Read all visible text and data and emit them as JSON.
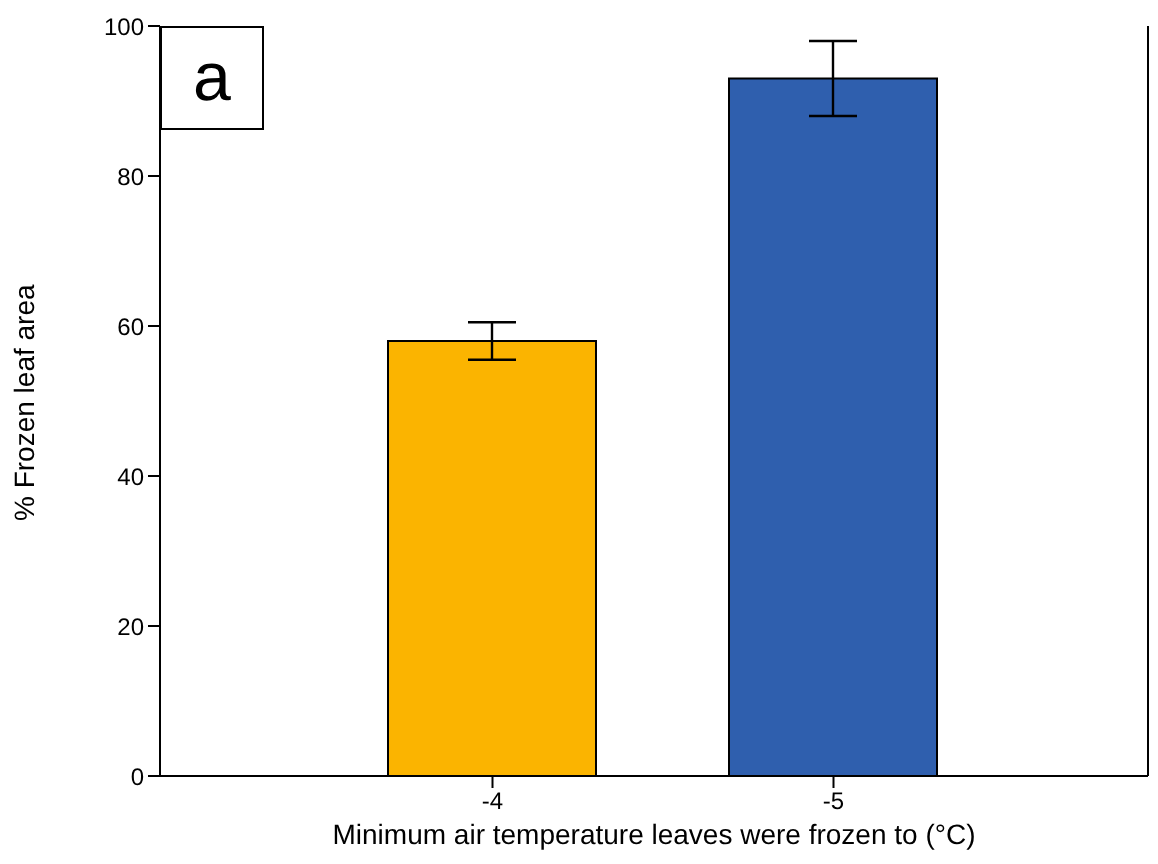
{
  "chart_data": {
    "type": "bar",
    "xlabel": "Minimum air temperature leaves were frozen to (°C)",
    "ylabel": "% Frozen leaf area",
    "categories": [
      "-4",
      "-5"
    ],
    "values": [
      58,
      93
    ],
    "colors": [
      "#fbb400",
      "#2f5fae"
    ],
    "errors": [
      2.5,
      5
    ],
    "ylim": [
      0,
      100
    ],
    "yticks": [
      0,
      20,
      40,
      60,
      80,
      100
    ],
    "annotations": [
      "a"
    ]
  }
}
